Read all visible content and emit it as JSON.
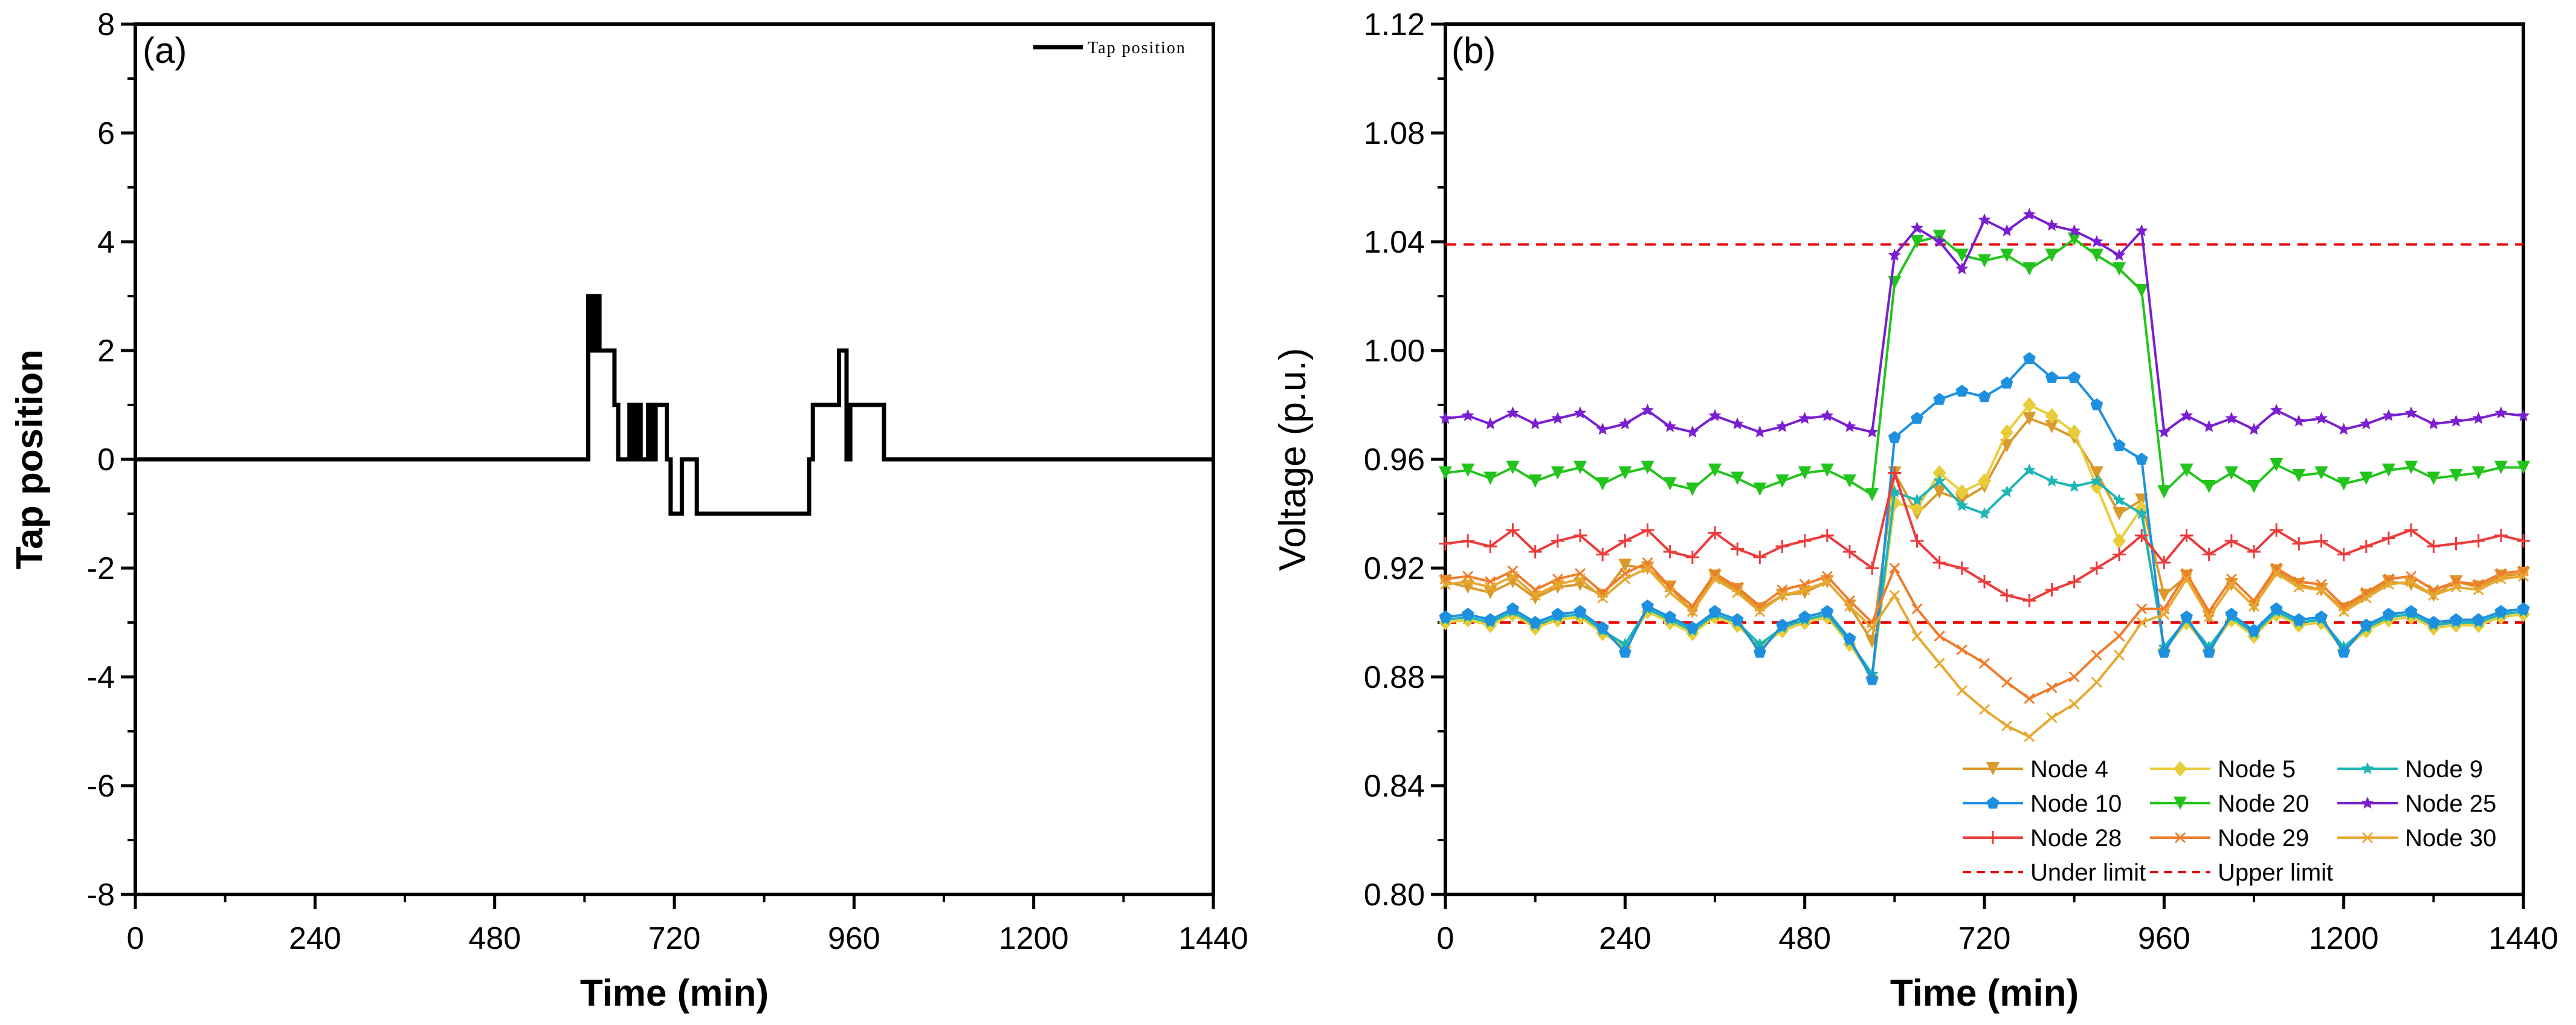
{
  "chart_data": [
    {
      "id": "a",
      "type": "line",
      "panel_label": "(a)",
      "title": "",
      "xlabel": "Time (min)",
      "ylabel": "Tap position",
      "xlim": [
        0,
        1440
      ],
      "ylim": [
        -8,
        8
      ],
      "xticks": [
        0,
        240,
        480,
        720,
        960,
        1200,
        1440
      ],
      "yticks": [
        -8,
        -6,
        -4,
        -2,
        0,
        2,
        4,
        6,
        8
      ],
      "grid": false,
      "legend_position": "top-right",
      "series": [
        {
          "name": "Tap position",
          "color": "#000000",
          "step": true,
          "x": [
            0,
            605,
            610,
            615,
            620,
            640,
            645,
            660,
            665,
            670,
            675,
            685,
            690,
            695,
            710,
            715,
            730,
            735,
            750,
            755,
            900,
            905,
            915,
            940,
            950,
            955,
            970,
            1000,
            1440
          ],
          "y": [
            0,
            3,
            2,
            3,
            2,
            1,
            0,
            1,
            0,
            1,
            0,
            1,
            0,
            1,
            0,
            -1,
            0,
            0,
            -1,
            -1,
            0,
            1,
            1,
            2,
            0,
            1,
            1,
            0,
            0
          ]
        }
      ]
    },
    {
      "id": "b",
      "type": "line",
      "panel_label": "(b)",
      "title": "",
      "xlabel": "Time (min)",
      "ylabel": "Voltage (p.u.)",
      "xlim": [
        0,
        1440
      ],
      "ylim": [
        0.8,
        1.12
      ],
      "xticks": [
        0,
        240,
        480,
        720,
        960,
        1200,
        1440
      ],
      "yticks": [
        0.8,
        0.84,
        0.88,
        0.92,
        0.96,
        1.0,
        1.04,
        1.08,
        1.12
      ],
      "ytick_labels": [
        "0.80",
        "0.84",
        "0.88",
        "0.92",
        "0.96",
        "1.00",
        "1.04",
        "1.08",
        "1.12"
      ],
      "grid": false,
      "legend_position": "bottom-right",
      "x": [
        0,
        30,
        60,
        90,
        120,
        150,
        180,
        210,
        240,
        270,
        300,
        330,
        360,
        390,
        420,
        450,
        480,
        510,
        540,
        570,
        600,
        630,
        660,
        690,
        720,
        750,
        780,
        810,
        840,
        870,
        900,
        930,
        960,
        990,
        1020,
        1050,
        1080,
        1110,
        1140,
        1170,
        1200,
        1230,
        1260,
        1290,
        1320,
        1350,
        1380,
        1410,
        1440
      ],
      "series": [
        {
          "name": "Node 4",
          "color": "#D99A2B",
          "marker": "triangle-down",
          "values": [
            0.915,
            0.913,
            0.911,
            0.915,
            0.909,
            0.913,
            0.914,
            0.91,
            0.921,
            0.92,
            0.913,
            0.904,
            0.917,
            0.912,
            0.905,
            0.91,
            0.911,
            0.915,
            0.906,
            0.893,
            0.955,
            0.94,
            0.948,
            0.945,
            0.95,
            0.965,
            0.975,
            0.972,
            0.968,
            0.955,
            0.94,
            0.945,
            0.91,
            0.917,
            0.902,
            0.914,
            0.906,
            0.919,
            0.914,
            0.912,
            0.905,
            0.91,
            0.915,
            0.914,
            0.91,
            0.915,
            0.913,
            0.917,
            0.918
          ]
        },
        {
          "name": "Node 5",
          "color": "#E8CC38",
          "marker": "diamond",
          "values": [
            0.9,
            0.901,
            0.899,
            0.903,
            0.898,
            0.901,
            0.902,
            0.896,
            0.891,
            0.904,
            0.9,
            0.896,
            0.902,
            0.899,
            0.891,
            0.897,
            0.9,
            0.902,
            0.892,
            0.88,
            0.944,
            0.942,
            0.955,
            0.948,
            0.952,
            0.97,
            0.98,
            0.976,
            0.97,
            0.95,
            0.93,
            0.942,
            0.89,
            0.9,
            0.89,
            0.901,
            0.895,
            0.903,
            0.899,
            0.9,
            0.89,
            0.897,
            0.901,
            0.902,
            0.898,
            0.899,
            0.899,
            0.902,
            0.903
          ]
        },
        {
          "name": "Node 9",
          "color": "#1EB5B5",
          "marker": "star",
          "values": [
            0.901,
            0.902,
            0.9,
            0.904,
            0.899,
            0.902,
            0.903,
            0.897,
            0.892,
            0.905,
            0.901,
            0.897,
            0.903,
            0.9,
            0.892,
            0.898,
            0.901,
            0.903,
            0.893,
            0.881,
            0.948,
            0.945,
            0.952,
            0.943,
            0.94,
            0.948,
            0.956,
            0.952,
            0.95,
            0.952,
            0.945,
            0.94,
            0.891,
            0.901,
            0.891,
            0.902,
            0.896,
            0.904,
            0.9,
            0.901,
            0.891,
            0.898,
            0.902,
            0.903,
            0.899,
            0.9,
            0.9,
            0.903,
            0.904
          ]
        },
        {
          "name": "Node 10",
          "color": "#1E90E0",
          "marker": "pentagon",
          "values": [
            0.902,
            0.903,
            0.901,
            0.905,
            0.9,
            0.903,
            0.904,
            0.898,
            0.889,
            0.906,
            0.902,
            0.898,
            0.904,
            0.901,
            0.889,
            0.899,
            0.902,
            0.904,
            0.894,
            0.879,
            0.968,
            0.975,
            0.982,
            0.985,
            0.983,
            0.988,
            0.997,
            0.99,
            0.99,
            0.98,
            0.965,
            0.96,
            0.889,
            0.902,
            0.889,
            0.903,
            0.897,
            0.905,
            0.901,
            0.902,
            0.889,
            0.899,
            0.903,
            0.904,
            0.9,
            0.901,
            0.901,
            0.904,
            0.905
          ]
        },
        {
          "name": "Node 20",
          "color": "#22C41B",
          "marker": "triangle-down",
          "values": [
            0.955,
            0.956,
            0.953,
            0.957,
            0.952,
            0.955,
            0.957,
            0.951,
            0.955,
            0.957,
            0.951,
            0.949,
            0.956,
            0.953,
            0.949,
            0.952,
            0.955,
            0.956,
            0.952,
            0.947,
            1.025,
            1.04,
            1.042,
            1.035,
            1.033,
            1.035,
            1.03,
            1.035,
            1.041,
            1.035,
            1.03,
            1.022,
            0.948,
            0.956,
            0.95,
            0.955,
            0.95,
            0.958,
            0.954,
            0.955,
            0.951,
            0.953,
            0.956,
            0.957,
            0.953,
            0.954,
            0.955,
            0.957,
            0.957
          ]
        },
        {
          "name": "Node 25",
          "color": "#7A1FD0",
          "marker": "star",
          "values": [
            0.975,
            0.976,
            0.973,
            0.977,
            0.973,
            0.975,
            0.977,
            0.971,
            0.973,
            0.978,
            0.972,
            0.97,
            0.976,
            0.973,
            0.97,
            0.972,
            0.975,
            0.976,
            0.972,
            0.97,
            1.035,
            1.045,
            1.04,
            1.03,
            1.048,
            1.044,
            1.05,
            1.046,
            1.044,
            1.04,
            1.035,
            1.044,
            0.97,
            0.976,
            0.972,
            0.975,
            0.971,
            0.978,
            0.974,
            0.975,
            0.971,
            0.973,
            0.976,
            0.977,
            0.973,
            0.974,
            0.975,
            0.977,
            0.976
          ]
        },
        {
          "name": "Node 28",
          "color": "#EC3B3B",
          "marker": "plus",
          "values": [
            0.929,
            0.93,
            0.928,
            0.934,
            0.926,
            0.93,
            0.932,
            0.925,
            0.93,
            0.934,
            0.926,
            0.924,
            0.933,
            0.927,
            0.924,
            0.928,
            0.93,
            0.932,
            0.926,
            0.92,
            0.955,
            0.93,
            0.922,
            0.92,
            0.915,
            0.91,
            0.908,
            0.912,
            0.915,
            0.92,
            0.925,
            0.932,
            0.922,
            0.932,
            0.925,
            0.93,
            0.926,
            0.934,
            0.929,
            0.93,
            0.925,
            0.928,
            0.931,
            0.934,
            0.928,
            0.929,
            0.93,
            0.932,
            0.93
          ]
        },
        {
          "name": "Node 29",
          "color": "#F07B2A",
          "marker": "x",
          "values": [
            0.916,
            0.917,
            0.915,
            0.919,
            0.912,
            0.916,
            0.918,
            0.911,
            0.918,
            0.922,
            0.913,
            0.906,
            0.918,
            0.913,
            0.906,
            0.912,
            0.914,
            0.917,
            0.908,
            0.9,
            0.92,
            0.905,
            0.895,
            0.89,
            0.885,
            0.878,
            0.872,
            0.876,
            0.88,
            0.888,
            0.895,
            0.905,
            0.905,
            0.918,
            0.904,
            0.916,
            0.908,
            0.92,
            0.915,
            0.914,
            0.906,
            0.911,
            0.916,
            0.917,
            0.912,
            0.915,
            0.914,
            0.918,
            0.919
          ]
        },
        {
          "name": "Node 30",
          "color": "#E8A830",
          "marker": "x",
          "values": [
            0.914,
            0.915,
            0.913,
            0.917,
            0.91,
            0.914,
            0.916,
            0.909,
            0.916,
            0.92,
            0.911,
            0.904,
            0.916,
            0.911,
            0.904,
            0.91,
            0.912,
            0.915,
            0.906,
            0.898,
            0.91,
            0.895,
            0.885,
            0.875,
            0.868,
            0.862,
            0.858,
            0.865,
            0.87,
            0.878,
            0.888,
            0.9,
            0.903,
            0.916,
            0.902,
            0.914,
            0.906,
            0.918,
            0.913,
            0.912,
            0.904,
            0.909,
            0.914,
            0.915,
            0.91,
            0.913,
            0.912,
            0.916,
            0.917
          ]
        }
      ],
      "reference_lines": [
        {
          "name": "Under limit",
          "value": 0.9,
          "color": "#E60000",
          "dash": true
        },
        {
          "name": "Upper limit",
          "value": 1.039,
          "color": "#E60000",
          "dash": true
        }
      ]
    }
  ]
}
